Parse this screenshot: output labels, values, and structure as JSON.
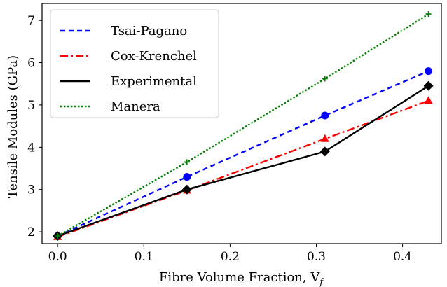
{
  "chart_data": {
    "type": "line",
    "title": "",
    "xlabel": "Fibre Volume Fraction, V",
    "xlabel_subscript": "f",
    "ylabel": "Tensile Modules (GPa)",
    "xlim": [
      -0.018,
      0.445
    ],
    "ylim": [
      1.72,
      7.4
    ],
    "xticks": [
      0.0,
      0.1,
      0.2,
      0.3,
      0.4
    ],
    "xtick_labels": [
      "0.0",
      "0.1",
      "0.2",
      "0.3",
      "0.4"
    ],
    "yticks": [
      2,
      3,
      4,
      5,
      6,
      7
    ],
    "ytick_labels": [
      "2",
      "3",
      "4",
      "5",
      "6",
      "7"
    ],
    "grid": false,
    "legend_position": "top-left",
    "series": [
      {
        "name": "Tsai-Pagano",
        "color": "#0000ff",
        "dash": "dashed",
        "marker": "circle",
        "x": [
          0.0,
          0.15,
          0.31,
          0.43
        ],
        "y": [
          1.9,
          3.3,
          4.75,
          5.8
        ]
      },
      {
        "name": "Cox-Krenchel",
        "color": "#ff0000",
        "dash": "dashdot",
        "marker": "triangle",
        "x": [
          0.0,
          0.15,
          0.31,
          0.43
        ],
        "y": [
          1.88,
          2.98,
          4.2,
          5.1
        ]
      },
      {
        "name": "Experimental",
        "color": "#000000",
        "dash": "solid",
        "marker": "diamond",
        "x": [
          0.0,
          0.15,
          0.31,
          0.43
        ],
        "y": [
          1.9,
          3.0,
          3.9,
          5.45
        ]
      },
      {
        "name": "Manera",
        "color": "#008000",
        "dash": "dotted",
        "marker": "plus",
        "x": [
          0.0,
          0.15,
          0.31,
          0.43
        ],
        "y": [
          1.9,
          3.65,
          5.62,
          7.15
        ]
      }
    ]
  }
}
